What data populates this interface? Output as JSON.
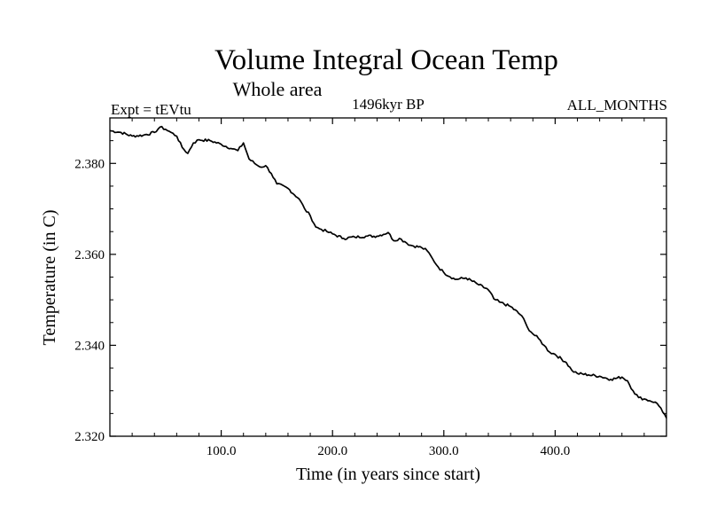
{
  "chart_data": {
    "type": "line",
    "title": "Volume Integral Ocean Temp",
    "subtitle": "Whole area",
    "left_label": "Expt = tEVtu",
    "center_label": "1496kyr BP",
    "right_label": "ALL_MONTHS",
    "xlabel": "Time (in years since start)",
    "ylabel": "Temperature (in C)",
    "xlim": [
      0,
      500
    ],
    "ylim": [
      2.32,
      2.39
    ],
    "x_ticks": [
      100,
      200,
      300,
      400
    ],
    "x_tick_labels": [
      "100.0",
      "200.0",
      "300.0",
      "400.0"
    ],
    "y_ticks": [
      2.32,
      2.34,
      2.36,
      2.38
    ],
    "y_tick_labels": [
      "2.320",
      "2.340",
      "2.360",
      "2.380"
    ],
    "series": [
      {
        "name": "Volume Integral Ocean Temp",
        "x": [
          0,
          10,
          20,
          30,
          40,
          45,
          50,
          55,
          60,
          65,
          70,
          75,
          80,
          90,
          100,
          110,
          115,
          120,
          125,
          130,
          135,
          140,
          145,
          150,
          160,
          170,
          175,
          180,
          185,
          190,
          195,
          200,
          210,
          220,
          230,
          240,
          250,
          255,
          260,
          265,
          270,
          280,
          285,
          290,
          295,
          300,
          310,
          320,
          330,
          340,
          345,
          350,
          360,
          370,
          375,
          380,
          385,
          390,
          395,
          400,
          410,
          415,
          420,
          430,
          440,
          450,
          460,
          465,
          470,
          475,
          480,
          485,
          490,
          495,
          500
        ],
        "values": [
          2.3872,
          2.3868,
          2.386,
          2.3862,
          2.3868,
          2.388,
          2.3875,
          2.3868,
          2.386,
          2.3835,
          2.3822,
          2.3845,
          2.3852,
          2.385,
          2.3842,
          2.3832,
          2.3828,
          2.3845,
          2.381,
          2.38,
          2.3792,
          2.3795,
          2.3778,
          2.3755,
          2.3745,
          2.3722,
          2.37,
          2.3685,
          2.366,
          2.3655,
          2.365,
          2.3645,
          2.3635,
          2.3638,
          2.364,
          2.364,
          2.3648,
          2.363,
          2.3635,
          2.3628,
          2.362,
          2.3615,
          2.3608,
          2.359,
          2.3572,
          2.356,
          2.3545,
          2.3548,
          2.3535,
          2.3522,
          2.3502,
          2.3495,
          2.3485,
          2.3465,
          2.344,
          2.3425,
          2.3415,
          2.34,
          2.3385,
          2.338,
          2.3362,
          2.3345,
          2.3338,
          2.3335,
          2.3332,
          2.3325,
          2.333,
          2.3322,
          2.33,
          2.3285,
          2.3282,
          2.3278,
          2.3275,
          2.3262,
          2.324
        ]
      }
    ]
  }
}
